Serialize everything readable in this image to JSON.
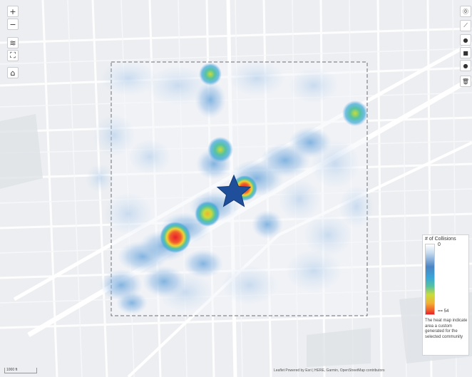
{
  "controls_left": [
    {
      "name": "zoom-in-button",
      "icon": "plus-icon",
      "label": "+"
    },
    {
      "name": "zoom-out-button",
      "icon": "minus-icon",
      "label": "−"
    },
    {
      "name": "layers-button",
      "icon": "layers-icon",
      "label": "≋"
    },
    {
      "name": "fullscreen-button",
      "icon": "fullscreen-icon",
      "label": "⛶"
    },
    {
      "name": "home-button",
      "icon": "home-icon",
      "label": "⌂"
    }
  ],
  "controls_right": [
    {
      "name": "info-button",
      "icon": "info-icon",
      "label": "⓪"
    },
    {
      "name": "draw-line-button",
      "icon": "line-tool-icon",
      "label": "⟋"
    },
    {
      "name": "draw-point-button",
      "icon": "point-tool-icon",
      "label": "●"
    },
    {
      "name": "draw-square-button",
      "icon": "square-tool-icon",
      "label": "■"
    },
    {
      "name": "draw-marker-button",
      "icon": "marker-tool-icon",
      "label": "●"
    },
    {
      "name": "delete-button",
      "icon": "trash-icon",
      "label": "🗑"
    }
  ],
  "legend": {
    "title": "# of Collisions",
    "max_label": "0",
    "min_label": "== 54",
    "note": "The heat map indicate area a custom generated for the selected community",
    "gradient_colors": [
      "#ffffff",
      "#c6dbef",
      "#4a84c4",
      "#3aa7d8",
      "#56c2a0",
      "#c8dc3c",
      "#f2b233",
      "#f0602c",
      "#e8202a"
    ]
  },
  "scale_label": "1000 ft",
  "attribution": "Leaflet Powered by Esri | HERE, Garmin, OpenStreetMap contributors",
  "marker": {
    "icon": "star-icon",
    "color": "#1f4f9a"
  },
  "hotspots": [
    {
      "intensity": 0.85
    },
    {
      "intensity": 0.7
    },
    {
      "intensity": 0.55
    },
    {
      "intensity": 0.6
    },
    {
      "intensity": 0.5
    }
  ]
}
